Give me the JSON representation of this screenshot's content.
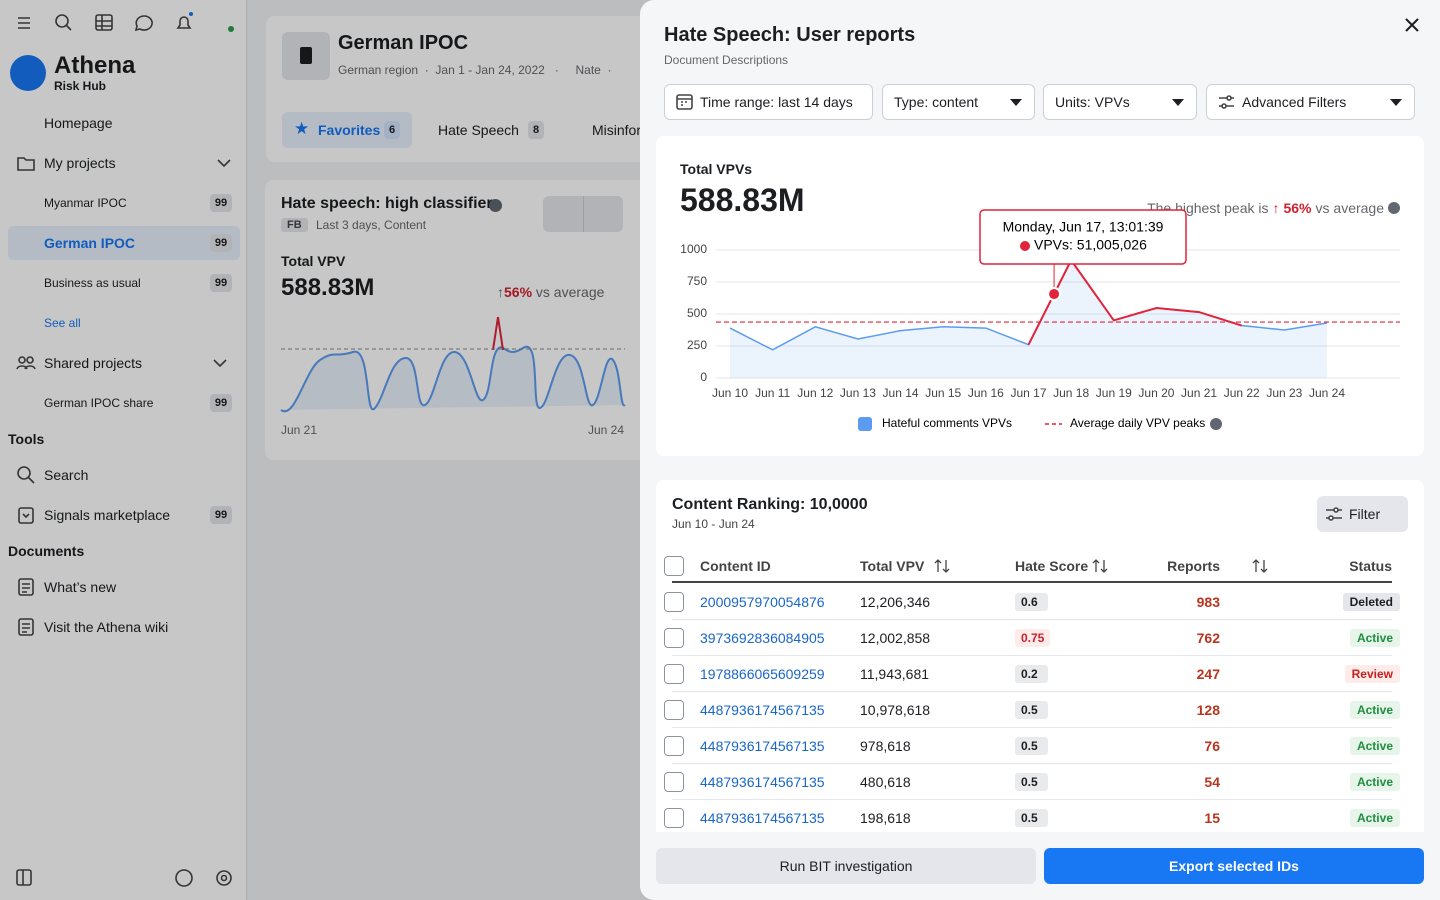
{
  "sidebar": {
    "brand": "Athena",
    "tagline": "Risk Hub",
    "homepage": "Homepage",
    "my_projects": "My projects",
    "projects": [
      {
        "label": "Myanmar IPOC",
        "badge": 99
      },
      {
        "label": "German IPOC",
        "badge": 99
      },
      {
        "label": "Business as usual",
        "badge": 99
      }
    ],
    "see_all": "See all",
    "shared_projects": "Shared projects",
    "shared": [
      {
        "label": "German IPOC share",
        "badge": 99
      }
    ],
    "tools_heading": "Tools",
    "tools": [
      {
        "label": "Search"
      },
      {
        "label": "Signals marketplace",
        "badge": 99
      }
    ],
    "documents_heading": "Documents",
    "documents": [
      {
        "label": "What’s new"
      },
      {
        "label": "Visit the Athena wiki"
      }
    ]
  },
  "project": {
    "title": "German IPOC",
    "region": "German region",
    "dates": "Jan 1 - Jan 24, 2022",
    "owner": "Nate",
    "tabs": [
      {
        "label": "Favorites",
        "count": 6
      },
      {
        "label": "Hate Speech",
        "count": 8
      },
      {
        "label": "Misinformation"
      }
    ]
  },
  "card": {
    "title": "Hate speech: high classifier",
    "platform": "FB",
    "meta": "Last 3 days, Content",
    "metric_label": "Total VPV",
    "metric": "588.83M",
    "change": "56%",
    "change_suffix": "vs average",
    "x_start": "Jun 21",
    "x_end": "Jun 24"
  },
  "panel": {
    "title": "Hate Speech: User reports",
    "subtitle": "Document Descriptions",
    "filters": [
      "Time range: last 14 days",
      "Type: content",
      "Units: VPVs",
      "Advanced Filters"
    ],
    "run_button": "Run BIT investigation",
    "export_button": "Export selected IDs"
  },
  "chart_data": {
    "type": "line",
    "title": "Total VPVs",
    "total": "588.83M",
    "peak_note": "The highest peak is",
    "peak_change": "56%",
    "peak_suffix": "vs average",
    "categories": [
      "Jun 10",
      "Jun 11",
      "Jun 12",
      "Jun 13",
      "Jun 14",
      "Jun 15",
      "Jun 16",
      "Jun 17",
      "Jun 18",
      "Jun 19",
      "Jun 20",
      "Jun 21",
      "Jun 22",
      "Jun 23",
      "Jun 24"
    ],
    "series": [
      {
        "name": "Hateful comments VPVs",
        "color": "#5b9bf0",
        "peak_color": "#e0243a",
        "values": [
          390,
          220,
          400,
          305,
          370,
          400,
          390,
          260,
          920,
          450,
          547,
          515,
          410,
          375,
          430
        ]
      }
    ],
    "reference": {
      "name": "Average daily VPV peaks",
      "color": "#e0243a",
      "value": 437
    },
    "ylim": [
      0,
      1000
    ],
    "yticks": [
      0,
      250,
      500,
      750,
      1000
    ],
    "grid": true,
    "tooltip": {
      "title": "Monday, Jun 17, 13:01:39",
      "label": "VPVs: 51,005,026"
    }
  },
  "table": {
    "title": "Content Ranking: 10,0000",
    "dates": "Jun 10 - Jun 24",
    "filter": "Filter",
    "columns": [
      "Content ID",
      "Total VPV",
      "Hate Score",
      "Reports",
      "Status"
    ],
    "rows": [
      {
        "id": "2000957970054876",
        "total_vpv": "12,206,346",
        "hate_score": 0.6,
        "reports": 983,
        "status": "Deleted"
      },
      {
        "id": "3973692836084905",
        "total_vpv": "12,002,858",
        "hate_score": 0.75,
        "hate_score_color": "#d0202e",
        "reports": 762,
        "status": "Active"
      },
      {
        "id": "1978866065609259",
        "total_vpv": "11,943,681",
        "hate_score": 0.2,
        "reports": 247,
        "status": "Review"
      },
      {
        "id": "4487936174567135",
        "total_vpv": "10,978,618",
        "hate_score": 0.5,
        "reports": 128,
        "status": "Active"
      },
      {
        "id": "4487936174567135",
        "total_vpv": "978,618",
        "hate_score": 0.5,
        "reports": 76,
        "status": "Active"
      },
      {
        "id": "4487936174567135",
        "total_vpv": "480,618",
        "hate_score": 0.5,
        "reports": 54,
        "status": "Active"
      },
      {
        "id": "4487936174567135",
        "total_vpv": "198,618",
        "hate_score": 0.5,
        "reports": 15,
        "status": "Active"
      }
    ],
    "status_colors": {
      "Deleted": [
        "#e4e6eb",
        "#1c1e21"
      ],
      "Active": [
        "#e6f4ea",
        "#1e8e3e"
      ],
      "Review": [
        "#fdecea",
        "#c5221f"
      ]
    }
  }
}
